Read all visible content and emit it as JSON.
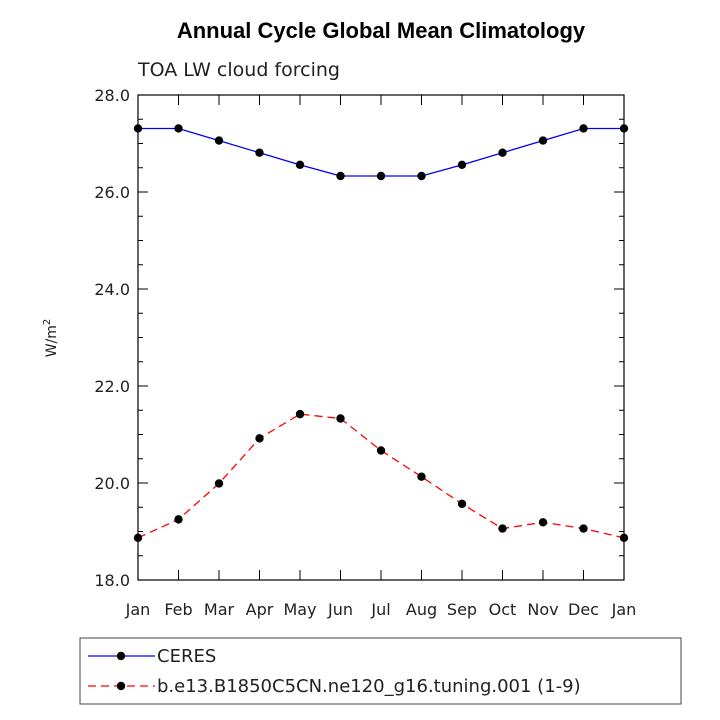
{
  "chart_data": {
    "type": "line",
    "title": "Annual Cycle Global Mean Climatology",
    "subtitle": "TOA LW cloud forcing",
    "ylabel": "W/m",
    "ylabel_sup": "2",
    "xlabel": "",
    "ylim": [
      18.0,
      28.0
    ],
    "yticks": [
      "18.0",
      "20.0",
      "22.0",
      "24.0",
      "26.0",
      "28.0"
    ],
    "categories": [
      "Jan",
      "Feb",
      "Mar",
      "Apr",
      "May",
      "Jun",
      "Jul",
      "Aug",
      "Sep",
      "Oct",
      "Nov",
      "Dec",
      "Jan"
    ],
    "grid": false,
    "legend_position": "bottom",
    "series": [
      {
        "name": "CERES",
        "color": "#0000ff",
        "dash": "solid",
        "values": [
          27.31,
          27.31,
          27.06,
          26.81,
          26.56,
          26.33,
          26.33,
          26.33,
          26.56,
          26.81,
          27.06,
          27.31,
          27.31
        ]
      },
      {
        "name": "b.e13.B1850C5CN.ne120_g16.tuning.001 (1-9)",
        "color": "#ff0000",
        "dash": "dashed",
        "values": [
          18.87,
          19.25,
          19.99,
          20.92,
          21.42,
          21.33,
          20.67,
          20.13,
          19.57,
          19.06,
          19.19,
          19.06,
          18.87
        ]
      }
    ]
  }
}
